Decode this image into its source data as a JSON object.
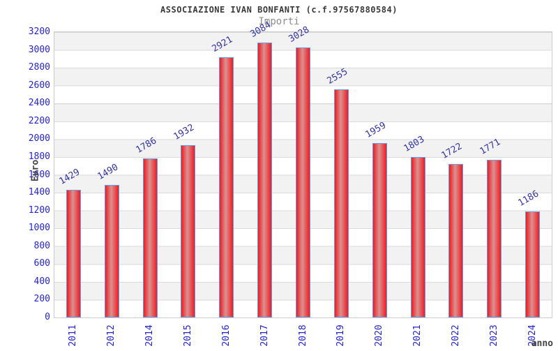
{
  "header": {
    "title": "ASSOCIAZIONE IVAN BONFANTI (c.f.97567880584)",
    "subtitle": "Importi"
  },
  "chart_data": {
    "type": "bar",
    "title": "ASSOCIAZIONE IVAN BONFANTI (c.f.97567880584)",
    "subtitle": "Importi",
    "xlabel": "anno",
    "ylabel": "Euro",
    "categories": [
      "2011",
      "2012",
      "2014",
      "2015",
      "2016",
      "2017",
      "2018",
      "2019",
      "2020",
      "2021",
      "2022",
      "2023",
      "2024"
    ],
    "values": [
      1429,
      1490,
      1786,
      1932,
      2921,
      3084,
      3028,
      2555,
      1959,
      1803,
      1722,
      1771,
      1186
    ],
    "ylim": [
      0,
      3200
    ],
    "ytick_step": 200,
    "grid": true,
    "legend": "none",
    "bar_value_labels": true,
    "bar_value_labels_rotation_deg": -30,
    "xtick_rotation_deg": -90
  },
  "colors": {
    "tick_label": "#2424cd",
    "value_label": "#34349e",
    "bar_fill_edge": "#ee1b22",
    "bar_fill_center": "#db9191",
    "bar_border": "#64a0e8",
    "title": "#3a3a3a",
    "subtitle": "#8c8c8c",
    "axis_title": "#434343",
    "band": "#f2f2f2",
    "band_alt": "#ffffff",
    "grid_line": "#dadada",
    "plot_border": "#cbcbcb"
  }
}
